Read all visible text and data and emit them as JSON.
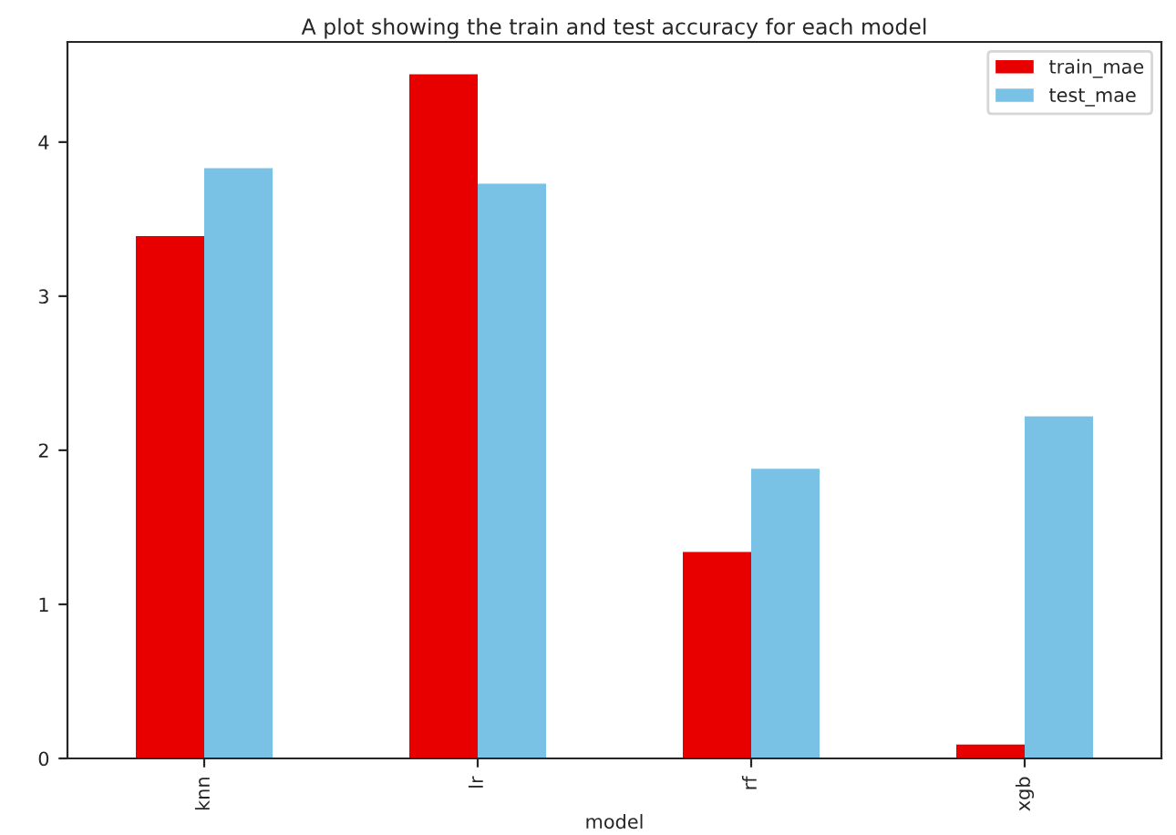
{
  "chart_data": {
    "type": "bar",
    "title": "A plot showing the train and test accuracy for each model",
    "xlabel": "model",
    "categories": [
      "knn",
      "lr",
      "rf",
      "xgb"
    ],
    "series": [
      {
        "name": "train_mae",
        "color": "#e80000",
        "values": [
          3.39,
          4.44,
          1.34,
          0.09
        ]
      },
      {
        "name": "test_mae",
        "color": "#79c2e6",
        "values": [
          3.83,
          3.73,
          1.88,
          2.22
        ]
      }
    ],
    "ylim": [
      0,
      4.65
    ],
    "yticks": [
      0,
      1,
      2,
      3,
      4
    ],
    "legend": "top right",
    "grid": false
  }
}
